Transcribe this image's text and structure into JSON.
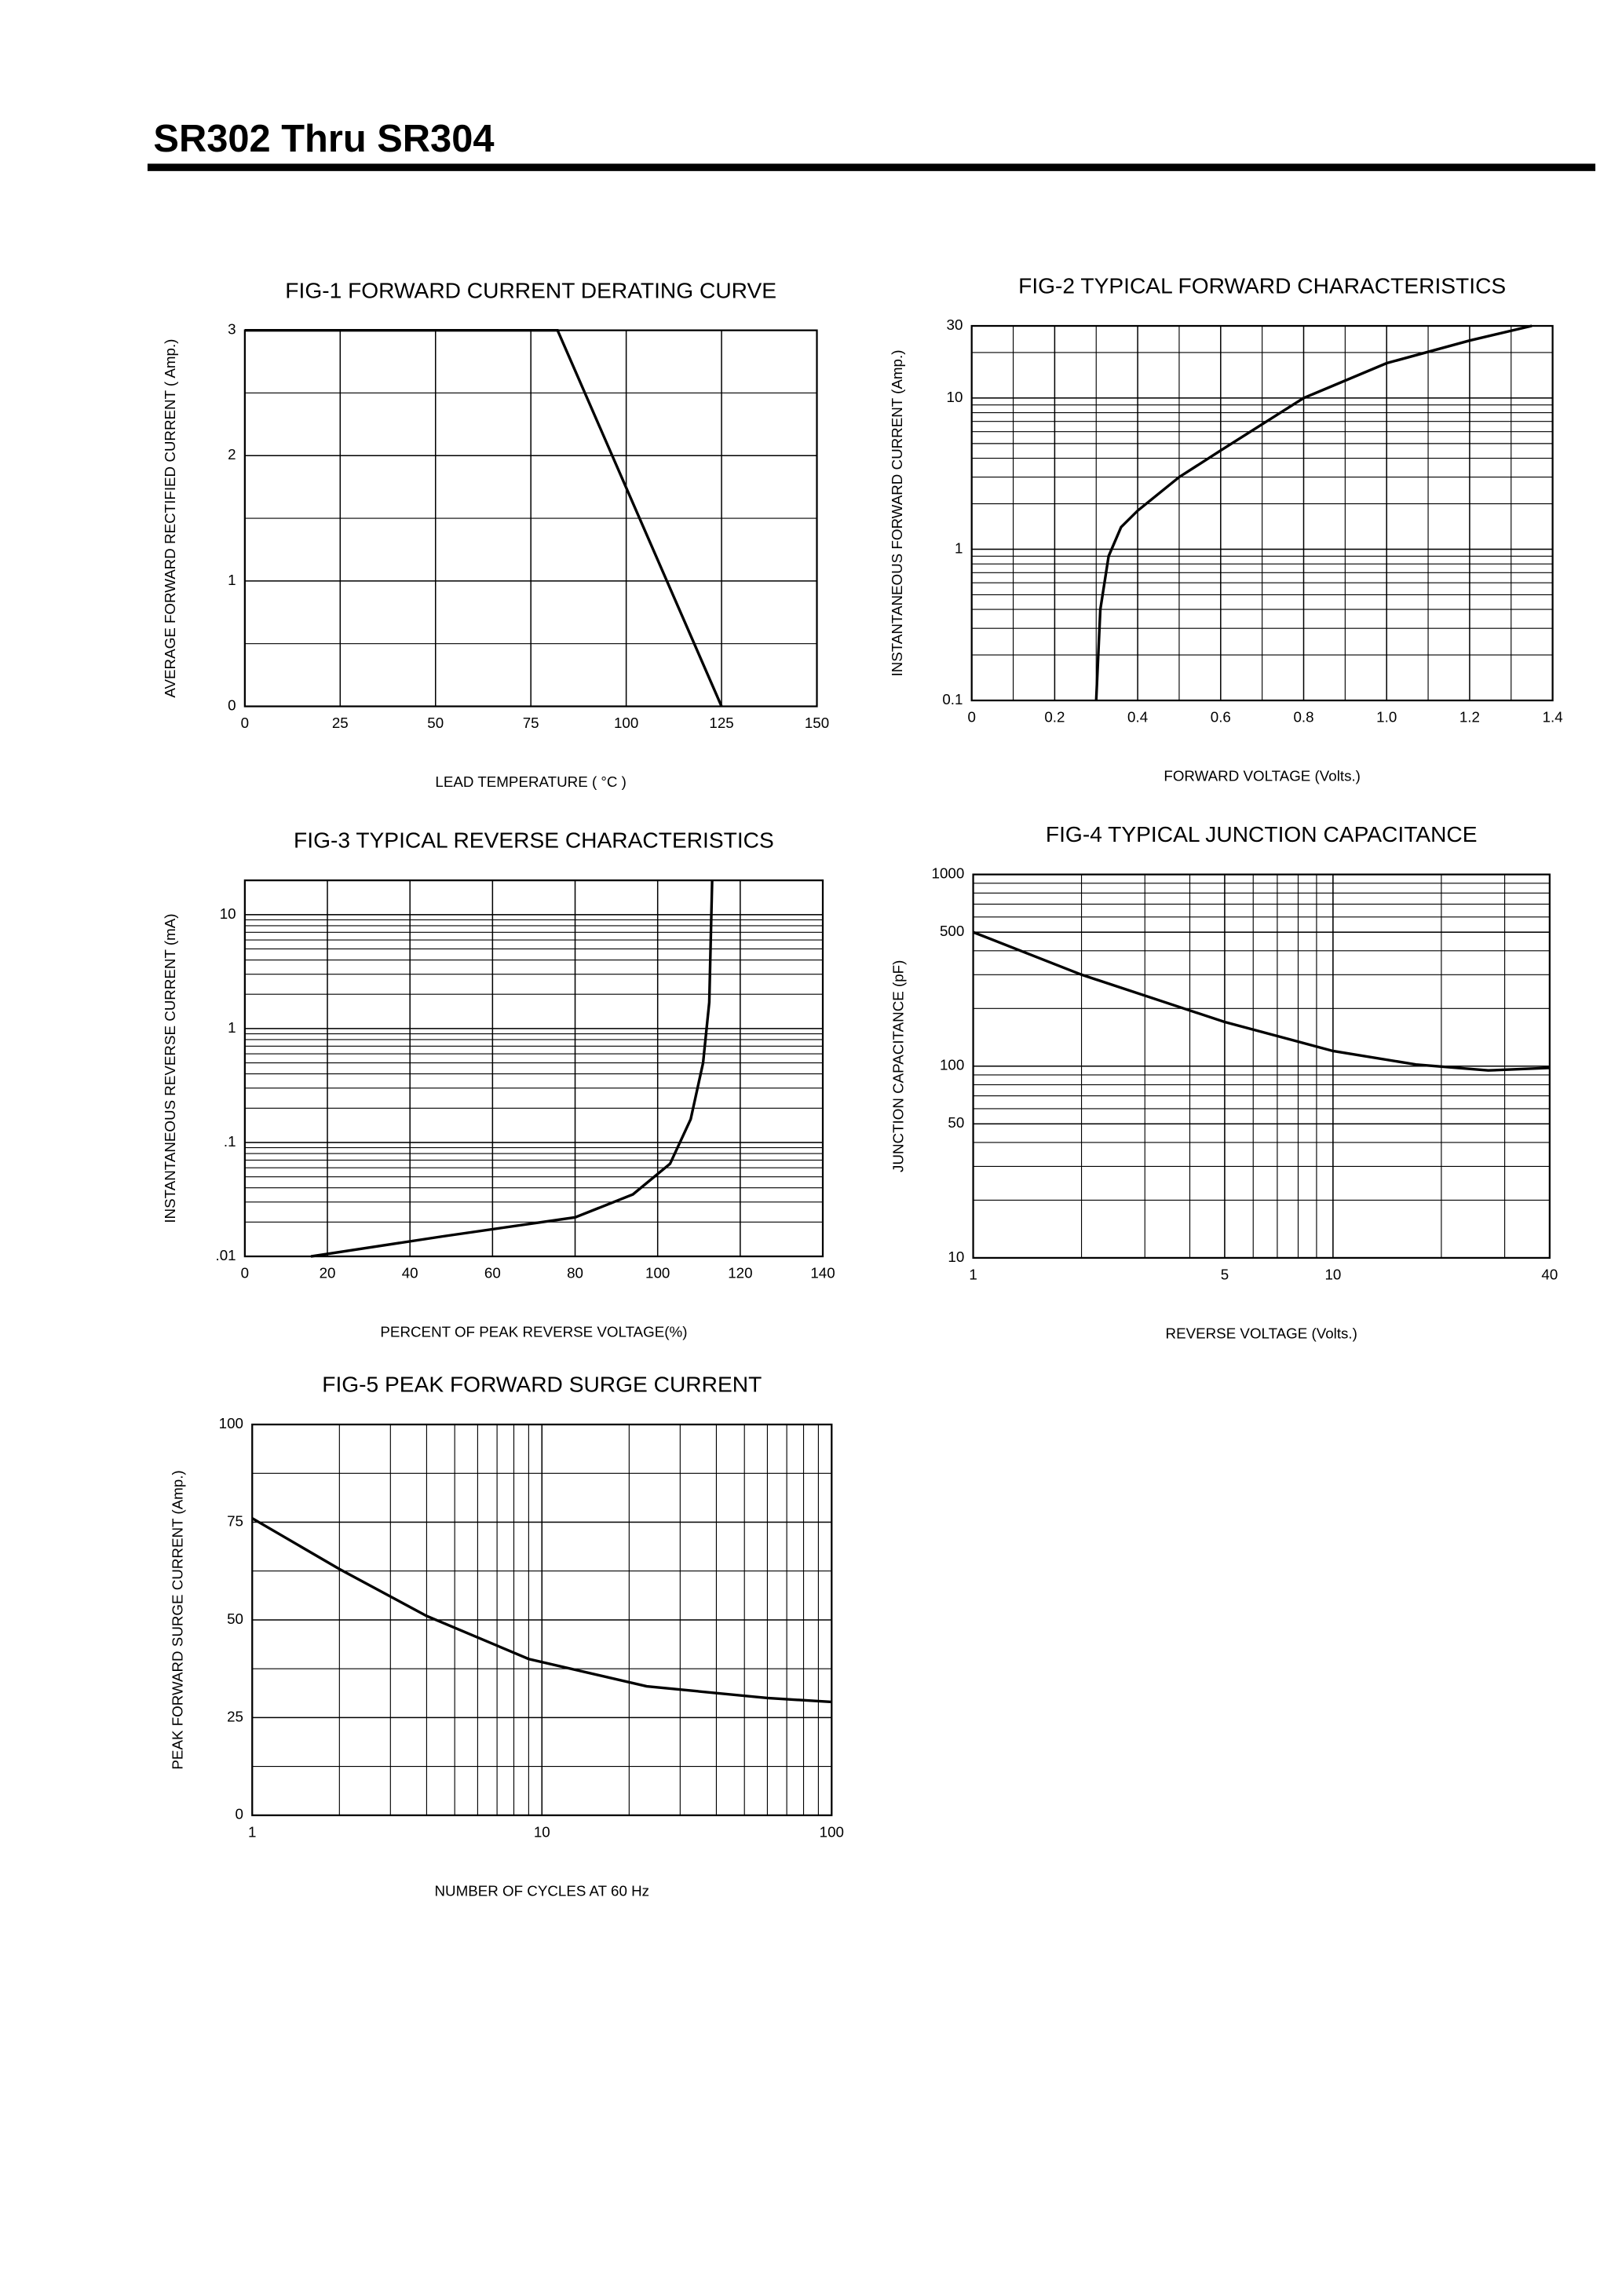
{
  "header": {
    "title": "SR302  Thru  SR304"
  },
  "chart_data": [
    {
      "type": "line",
      "title": "FIG-1 FORWARD CURRENT DERATING CURVE",
      "xlabel": "LEAD TEMPERATURE ( °C )",
      "ylabel": "AVERAGE FORWARD RECTIFIED CURRENT ( Amp.)",
      "x": [
        0,
        82,
        125
      ],
      "values": [
        3,
        3,
        0
      ],
      "color": "#000000",
      "xlim": [
        0,
        150
      ],
      "xticks": [
        0,
        25,
        50,
        75,
        100,
        125,
        150
      ],
      "ylim": [
        0,
        3
      ],
      "yticks": [
        0,
        1,
        2,
        3
      ],
      "grid": true,
      "minor_grid": {
        "x": false,
        "y": true
      }
    },
    {
      "type": "line",
      "title": "FIG-2 TYPICAL FORWARD CHARACTERISTICS",
      "xlabel": "FORWARD VOLTAGE (Volts.)",
      "ylabel": "INSTANTANEOUS FORWARD CURRENT (Amp.)",
      "x": [
        0.3,
        0.31,
        0.33,
        0.36,
        0.4,
        0.5,
        0.6,
        0.8,
        1.0,
        1.2,
        1.35
      ],
      "values": [
        0.1,
        0.4,
        0.9,
        1.4,
        1.8,
        3,
        4.5,
        10,
        17,
        24,
        30
      ],
      "color": "#000000",
      "xlim": [
        0,
        1.4
      ],
      "xticks": [
        0,
        0.2,
        0.4,
        0.6,
        0.8,
        {
          "value": 1,
          "label": "1.0"
        },
        1.2,
        1.4
      ],
      "ylim": [
        0.1,
        30
      ],
      "ylog": true,
      "yticks": [
        0.1,
        1,
        10,
        30
      ],
      "grid": true,
      "minor_grid": {
        "x": true,
        "y": true
      }
    },
    {
      "type": "line",
      "title": "FIG-3 TYPICAL REVERSE CHARACTERISTICS",
      "xlabel": "PERCENT OF PEAK REVERSE VOLTAGE(%)",
      "ylabel": "INSTANTANEOUS REVERSE CURRENT (mA)",
      "x": [
        16,
        48,
        80,
        94,
        103,
        108,
        111,
        112.5,
        113.2
      ],
      "values": [
        0.01,
        0.015,
        0.022,
        0.035,
        0.065,
        0.16,
        0.5,
        1.7,
        20
      ],
      "color": "#000000",
      "xlim": [
        0,
        140
      ],
      "xticks": [
        0,
        20,
        40,
        60,
        80,
        100,
        120,
        140
      ],
      "ylim": [
        0.01,
        20
      ],
      "ylog": true,
      "yticks": [
        {
          "value": 0.01,
          "label": ".01"
        },
        {
          "value": 0.1,
          "label": ".1"
        },
        1,
        10
      ],
      "grid": true,
      "minor_grid": {
        "x": false,
        "y": true
      }
    },
    {
      "type": "line",
      "title": "FIG-4 TYPICAL JUNCTION CAPACITANCE",
      "xlabel": "REVERSE VOLTAGE (Volts.)",
      "ylabel": "JUNCTION CAPACITANCE (pF)",
      "x": [
        1,
        2,
        5,
        10,
        17,
        27,
        40
      ],
      "values": [
        500,
        300,
        170,
        120,
        102,
        95,
        98
      ],
      "color": "#000000",
      "xlim": [
        1,
        40
      ],
      "xlog": true,
      "xticks": [
        1,
        5,
        10,
        40
      ],
      "ylim": [
        10,
        1000
      ],
      "ylog": true,
      "yticks": [
        10,
        50,
        100,
        500,
        1000
      ],
      "grid": true,
      "minor_grid": {
        "x": true,
        "y": true
      }
    },
    {
      "type": "line",
      "title": "FIG-5 PEAK FORWARD SURGE CURRENT",
      "xlabel": "NUMBER OF CYCLES AT 60 Hz",
      "ylabel": "PEAK FORWARD SURGE CURRENT (Amp.)",
      "x": [
        1,
        2,
        4,
        9,
        23,
        60,
        100
      ],
      "values": [
        76,
        63,
        51,
        40,
        33,
        30,
        29
      ],
      "color": "#000000",
      "xlim": [
        1,
        100
      ],
      "xlog": true,
      "xticks": [
        1,
        10,
        100
      ],
      "ylim": [
        0,
        100
      ],
      "yticks": [
        0,
        25,
        50,
        75,
        100
      ],
      "grid": true,
      "minor_grid": {
        "x": true,
        "y": true
      }
    }
  ]
}
